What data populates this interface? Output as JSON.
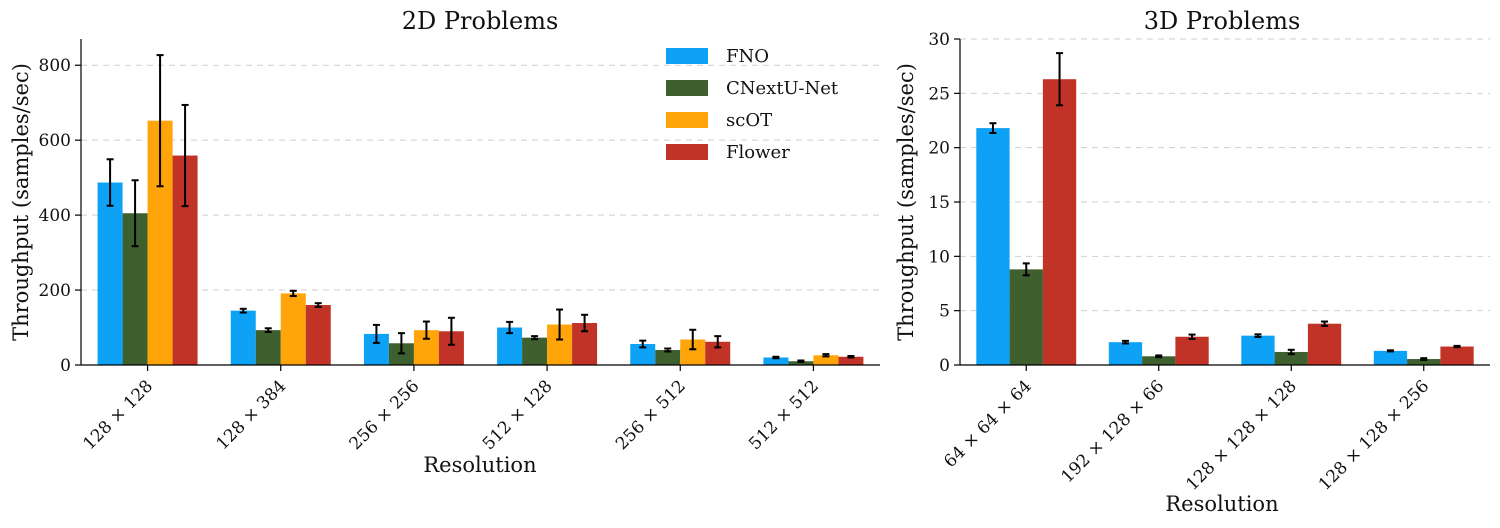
{
  "chart_data": [
    {
      "type": "bar",
      "title": "2D Problems",
      "xlabel": "Resolution",
      "ylabel": "Throughput (samples/sec)",
      "ylim": [
        0,
        870
      ],
      "yticks": [
        0,
        200,
        400,
        600,
        800
      ],
      "grid": true,
      "legend_position": "top-right",
      "categories": [
        "128 × 128",
        "128 × 384",
        "256 × 256",
        "512 × 128",
        "256 × 512",
        "512 × 512"
      ],
      "series": [
        {
          "name": "FNO",
          "color": "#0da2f5",
          "values": [
            487,
            145,
            83,
            100,
            56,
            20
          ],
          "errors": [
            62,
            5,
            24,
            15,
            9,
            2
          ]
        },
        {
          "name": "CNextU-Net",
          "color": "#3e5f2e",
          "values": [
            405,
            93,
            58,
            73,
            40,
            10
          ],
          "errors": [
            88,
            5,
            27,
            4,
            4,
            2
          ]
        },
        {
          "name": "scOT",
          "color": "#ffa409",
          "values": [
            652,
            191,
            93,
            108,
            68,
            26
          ],
          "errors": [
            175,
            7,
            23,
            40,
            26,
            3
          ]
        },
        {
          "name": "Flower",
          "color": "#c13326",
          "values": [
            559,
            160,
            90,
            112,
            62,
            22
          ],
          "errors": [
            135,
            5,
            36,
            22,
            15,
            2
          ]
        }
      ]
    },
    {
      "type": "bar",
      "title": "3D Problems",
      "xlabel": "Resolution",
      "ylabel": "Throughput (samples/sec)",
      "ylim": [
        0,
        30
      ],
      "yticks": [
        0,
        5,
        10,
        15,
        20,
        25,
        30
      ],
      "grid": true,
      "categories": [
        "64 × 64 × 64",
        "192 × 128 × 66",
        "128 × 128 × 128",
        "128 × 128 × 256"
      ],
      "series": [
        {
          "name": "FNO",
          "color": "#0da2f5",
          "values": [
            21.8,
            2.1,
            2.7,
            1.3
          ],
          "errors": [
            0.45,
            0.12,
            0.12,
            0.05
          ]
        },
        {
          "name": "CNextU-Net",
          "color": "#3e5f2e",
          "values": [
            8.8,
            0.8,
            1.2,
            0.55
          ],
          "errors": [
            0.55,
            0.08,
            0.2,
            0.08
          ]
        },
        {
          "name": "Flower",
          "color": "#c13326",
          "values": [
            26.3,
            2.6,
            3.8,
            1.7
          ],
          "errors": [
            2.4,
            0.2,
            0.2,
            0.06
          ]
        }
      ]
    }
  ]
}
